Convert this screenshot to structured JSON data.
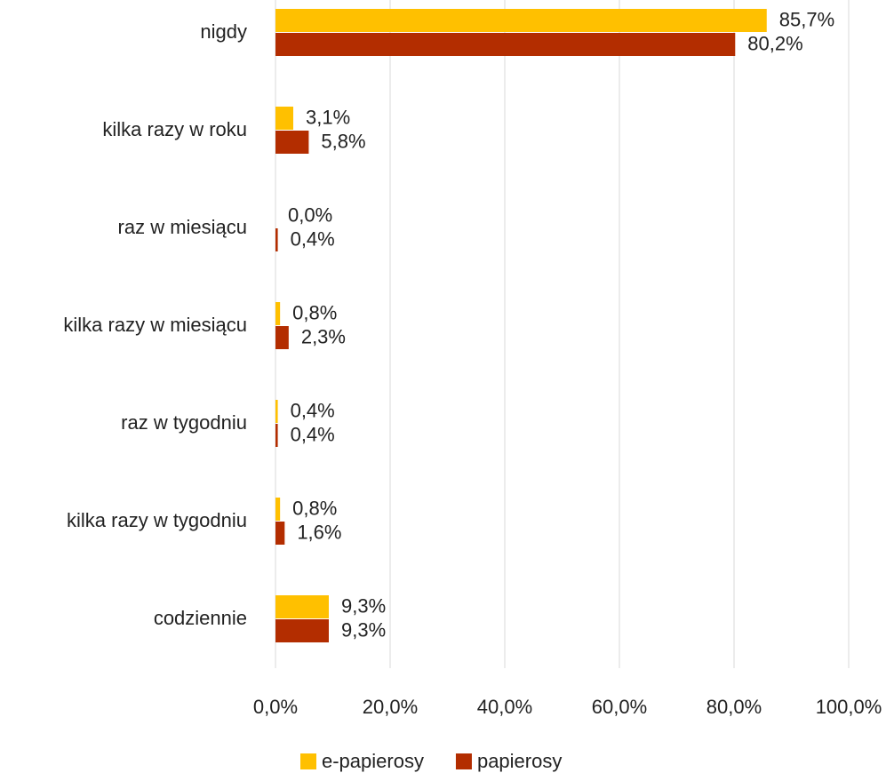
{
  "chart_data": {
    "type": "barh",
    "categories": [
      "nigdy",
      "kilka razy w roku",
      "raz w miesiącu",
      "kilka razy w miesiącu",
      "raz w tygodniu",
      "kilka razy w tygodniu",
      "codziennie"
    ],
    "series": [
      {
        "name": "e-papierosy",
        "color": "#ffc000",
        "values": [
          85.7,
          3.1,
          0.0,
          0.8,
          0.4,
          0.8,
          9.3
        ],
        "value_labels": [
          "85,7%",
          "3,1%",
          "0,0%",
          "0,8%",
          "0,4%",
          "0,8%",
          "9,3%"
        ]
      },
      {
        "name": "papierosy",
        "color": "#b32d00",
        "values": [
          80.2,
          5.8,
          0.4,
          2.3,
          0.4,
          1.6,
          9.3
        ],
        "value_labels": [
          "80,2%",
          "5,8%",
          "0,4%",
          "2,3%",
          "0,4%",
          "1,6%",
          "9,3%"
        ]
      }
    ],
    "xlim": [
      0,
      100
    ],
    "xticks": [
      {
        "value": 0,
        "label": "0,0%"
      },
      {
        "value": 20,
        "label": "20,0%"
      },
      {
        "value": 40,
        "label": "40,0%"
      },
      {
        "value": 60,
        "label": "60,0%"
      },
      {
        "value": 80,
        "label": "80,0%"
      },
      {
        "value": 100,
        "label": "100,0%"
      }
    ],
    "grid": true,
    "legend": "bottom"
  }
}
